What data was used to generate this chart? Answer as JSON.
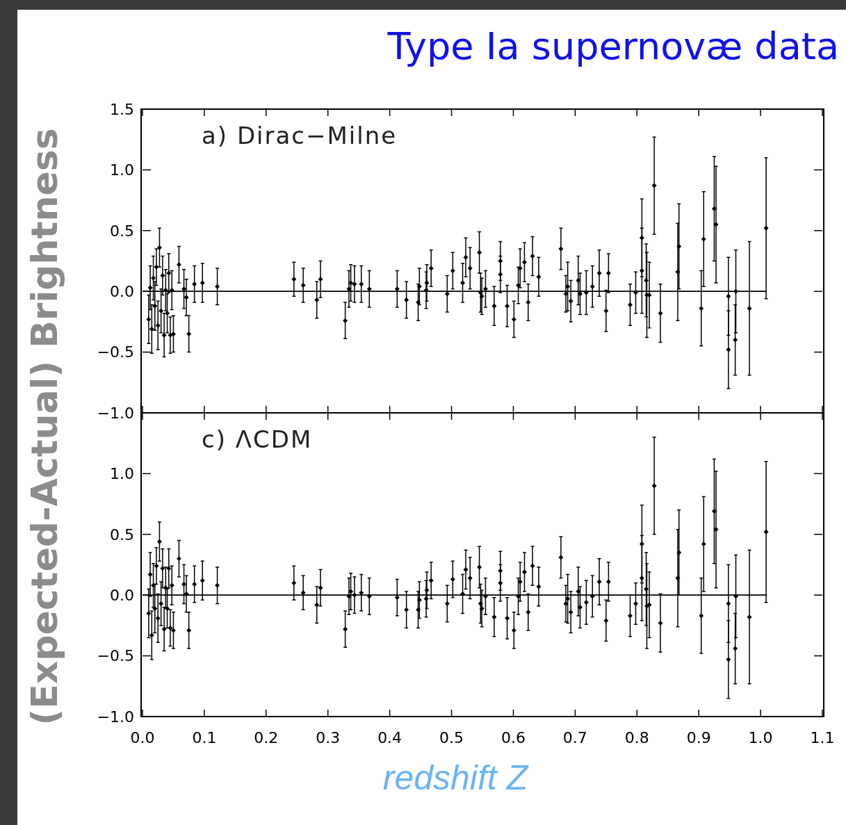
{
  "chart_data": [
    {
      "type": "scatter",
      "title": "Type Ia supernovæ data",
      "ylabel": "(Expected-Actual) Brightness",
      "annotations": [
        "a) Dirac−Milne"
      ],
      "marker": "diamond",
      "grid": false,
      "tick_labels": "y",
      "xlim": [
        0,
        1.1
      ],
      "xticks": [
        {
          "value": 0,
          "label": null
        },
        {
          "value": 0.1,
          "label": null
        },
        {
          "value": 0.2,
          "label": null
        },
        {
          "value": 0.3,
          "label": null
        },
        {
          "value": 0.4,
          "label": null
        },
        {
          "value": 0.5,
          "label": null
        },
        {
          "value": 0.6,
          "label": null
        },
        {
          "value": 0.7,
          "label": null
        },
        {
          "value": 0.8,
          "label": null
        },
        {
          "value": 0.9,
          "label": null
        },
        {
          "value": 1.0,
          "label": null
        },
        {
          "value": 1.1,
          "label": null
        }
      ],
      "ylim": [
        -1,
        1.5
      ],
      "yticks": [
        {
          "value": -1,
          "label": "−1.0"
        },
        {
          "value": -0.5,
          "label": "−0.5"
        },
        {
          "value": 0,
          "label": "0.0"
        },
        {
          "value": 0.5,
          "label": "0.5"
        },
        {
          "value": 1,
          "label": "1.0"
        },
        {
          "value": 1.5,
          "label": "1.5"
        }
      ],
      "series": [
        {
          "color": "#000000",
          "x": [
            0.01,
            0.0125,
            0.015,
            0.0175,
            0.02,
            0.0225,
            0.025,
            0.0275,
            0.03,
            0.0325,
            0.035,
            0.0375,
            0.04,
            0.0425,
            0.045,
            0.0475,
            0.05,
            0.059,
            0.067,
            0.071,
            0.075,
            0.084,
            0.097,
            0.121,
            0.245,
            0.26,
            0.282,
            0.288,
            0.328,
            0.334,
            0.337,
            0.343,
            0.354,
            0.367,
            0.412,
            0.427,
            0.446,
            0.448,
            0.459,
            0.46,
            0.467,
            0.493,
            0.502,
            0.518,
            0.523,
            0.53,
            0.545,
            0.547,
            0.549,
            0.555,
            0.569,
            0.579,
            0.579,
            0.59,
            0.601,
            0.608,
            0.611,
            0.618,
            0.624,
            0.631,
            0.641,
            0.677,
            0.685,
            0.688,
            0.693,
            0.705,
            0.708,
            0.718,
            0.728,
            0.739,
            0.75,
            0.754,
            0.789,
            0.798,
            0.808,
            0.808,
            0.815,
            0.816,
            0.82,
            0.828,
            0.838,
            0.866,
            0.868,
            0.904,
            0.908,
            0.925,
            0.928,
            0.948,
            0.948,
            0.959,
            0.96,
            0.982,
            1.009
          ],
          "values": [
            -0.23,
            0.03,
            -0.31,
            0.11,
            -0.12,
            0.2,
            -0.28,
            0.36,
            -0.16,
            0.13,
            -0.36,
            0.01,
            -0.18,
            0.15,
            -0.36,
            0.01,
            -0.35,
            0.22,
            0.02,
            -0.05,
            -0.35,
            0.06,
            0.07,
            0.04,
            0.1,
            0.05,
            -0.07,
            0.1,
            -0.24,
            0.02,
            0.07,
            0.06,
            0.06,
            0.02,
            0.02,
            -0.07,
            -0.09,
            0.04,
            0.01,
            0.07,
            0.19,
            -0.02,
            0.17,
            0.07,
            0.28,
            0.19,
            0.32,
            -0.01,
            -0.04,
            0.02,
            -0.12,
            0.14,
            0.25,
            -0.12,
            -0.23,
            0.05,
            0.19,
            0.24,
            -0.09,
            0.29,
            0.12,
            0.35,
            -0.02,
            0.04,
            -0.08,
            0.09,
            -0.02,
            -0.01,
            0.04,
            0.15,
            -0.16,
            0.15,
            -0.11,
            -0.01,
            0.44,
            0.17,
            0.09,
            -0.03,
            -0.03,
            0.87,
            -0.18,
            0.16,
            0.37,
            -0.14,
            0.43,
            0.68,
            0.55,
            -0.48,
            -0.04,
            -0.4,
            0.0,
            -0.14,
            0.52
          ],
          "errors": [
            0.2,
            0.18,
            0.2,
            0.18,
            0.2,
            0.15,
            0.2,
            0.16,
            0.18,
            0.16,
            0.18,
            0.17,
            0.16,
            0.16,
            0.15,
            0.16,
            0.15,
            0.15,
            0.16,
            0.15,
            0.15,
            0.15,
            0.16,
            0.15,
            0.14,
            0.14,
            0.15,
            0.15,
            0.15,
            0.15,
            0.15,
            0.15,
            0.15,
            0.15,
            0.15,
            0.15,
            0.15,
            0.15,
            0.15,
            0.15,
            0.15,
            0.15,
            0.15,
            0.16,
            0.16,
            0.17,
            0.17,
            0.16,
            0.15,
            0.15,
            0.16,
            0.15,
            0.16,
            0.17,
            0.15,
            0.15,
            0.16,
            0.16,
            0.15,
            0.16,
            0.16,
            0.17,
            0.15,
            0.2,
            0.17,
            0.2,
            0.17,
            0.18,
            0.17,
            0.19,
            0.17,
            0.16,
            0.17,
            0.17,
            0.32,
            0.35,
            0.3,
            0.35,
            0.27,
            0.4,
            0.24,
            0.4,
            0.35,
            0.31,
            0.39,
            0.43,
            0.48,
            0.32,
            0.32,
            0.29,
            0.34,
            0.55,
            0.58
          ]
        },
        {
          "type": "line",
          "marker": "none",
          "color": "#000000",
          "x": [
            0,
            1.01
          ],
          "values": [
            0,
            0
          ]
        }
      ]
    },
    {
      "type": "scatter",
      "xlabel": "redshift Z",
      "annotations": [
        "c) ΛCDM"
      ],
      "marker": "diamond",
      "grid": false,
      "xlim": [
        0,
        1.1
      ],
      "xticks": [
        {
          "value": 0,
          "label": "0.0"
        },
        {
          "value": 0.1,
          "label": "0.1"
        },
        {
          "value": 0.2,
          "label": "0.2"
        },
        {
          "value": 0.3,
          "label": "0.3"
        },
        {
          "value": 0.4,
          "label": "0.4"
        },
        {
          "value": 0.5,
          "label": "0.5"
        },
        {
          "value": 0.6,
          "label": "0.6"
        },
        {
          "value": 0.7,
          "label": "0.7"
        },
        {
          "value": 0.8,
          "label": "0.8"
        },
        {
          "value": 0.9,
          "label": "0.9"
        },
        {
          "value": 1.0,
          "label": "1.0"
        },
        {
          "value": 1.1,
          "label": "1.1"
        }
      ],
      "ylim": [
        -1,
        1.5
      ],
      "yticks": [
        {
          "value": -1,
          "label": "−1.0"
        },
        {
          "value": -0.5,
          "label": "−0.5"
        },
        {
          "value": 0,
          "label": "0.0"
        },
        {
          "value": 0.5,
          "label": "0.5"
        },
        {
          "value": 1,
          "label": "1.0"
        }
      ],
      "series": [
        {
          "color": "#000000",
          "x": [
            0.01,
            0.0125,
            0.015,
            0.0175,
            0.02,
            0.0225,
            0.025,
            0.0275,
            0.03,
            0.0325,
            0.035,
            0.0375,
            0.04,
            0.0425,
            0.045,
            0.0475,
            0.05,
            0.059,
            0.067,
            0.071,
            0.075,
            0.084,
            0.097,
            0.121,
            0.245,
            0.26,
            0.282,
            0.288,
            0.328,
            0.334,
            0.337,
            0.343,
            0.354,
            0.367,
            0.412,
            0.427,
            0.446,
            0.448,
            0.459,
            0.46,
            0.467,
            0.493,
            0.502,
            0.518,
            0.523,
            0.53,
            0.545,
            0.547,
            0.549,
            0.555,
            0.569,
            0.579,
            0.579,
            0.59,
            0.601,
            0.608,
            0.611,
            0.618,
            0.624,
            0.631,
            0.641,
            0.677,
            0.685,
            0.688,
            0.693,
            0.705,
            0.708,
            0.718,
            0.728,
            0.739,
            0.75,
            0.754,
            0.789,
            0.798,
            0.808,
            0.808,
            0.815,
            0.816,
            0.82,
            0.828,
            0.838,
            0.866,
            0.868,
            0.904,
            0.908,
            0.925,
            0.928,
            0.948,
            0.948,
            0.959,
            0.96,
            0.982,
            1.009
          ],
          "values": [
            -0.15,
            0.17,
            -0.33,
            0.08,
            -0.11,
            0.24,
            -0.19,
            0.44,
            -0.07,
            0.22,
            -0.28,
            0.06,
            -0.11,
            0.22,
            -0.27,
            0.08,
            -0.29,
            0.3,
            0.09,
            0.01,
            -0.29,
            0.09,
            0.12,
            0.08,
            0.1,
            0.02,
            -0.08,
            0.06,
            -0.28,
            -0.01,
            0.03,
            0.0,
            0.02,
            -0.01,
            -0.02,
            -0.12,
            -0.12,
            -0.04,
            -0.03,
            0.04,
            0.12,
            -0.07,
            0.13,
            0.01,
            0.21,
            0.14,
            0.23,
            -0.07,
            -0.11,
            -0.01,
            -0.18,
            0.1,
            0.2,
            -0.19,
            -0.29,
            -0.01,
            0.11,
            0.19,
            -0.14,
            0.24,
            0.07,
            0.31,
            -0.07,
            -0.03,
            -0.14,
            0.03,
            -0.1,
            -0.06,
            -0.01,
            0.11,
            -0.21,
            0.11,
            -0.17,
            -0.07,
            0.42,
            0.14,
            0.05,
            -0.09,
            -0.08,
            0.9,
            -0.23,
            0.14,
            0.35,
            -0.17,
            0.42,
            0.69,
            0.54,
            -0.53,
            -0.07,
            -0.44,
            -0.01,
            -0.18,
            0.52
          ],
          "errors": [
            0.2,
            0.18,
            0.2,
            0.18,
            0.2,
            0.15,
            0.2,
            0.16,
            0.18,
            0.16,
            0.18,
            0.17,
            0.16,
            0.16,
            0.15,
            0.16,
            0.15,
            0.15,
            0.16,
            0.15,
            0.15,
            0.15,
            0.16,
            0.15,
            0.14,
            0.14,
            0.15,
            0.15,
            0.15,
            0.15,
            0.15,
            0.15,
            0.15,
            0.15,
            0.15,
            0.15,
            0.15,
            0.15,
            0.15,
            0.15,
            0.15,
            0.15,
            0.15,
            0.16,
            0.16,
            0.17,
            0.17,
            0.16,
            0.15,
            0.15,
            0.16,
            0.15,
            0.16,
            0.17,
            0.15,
            0.15,
            0.16,
            0.16,
            0.15,
            0.16,
            0.16,
            0.17,
            0.15,
            0.2,
            0.17,
            0.2,
            0.17,
            0.18,
            0.17,
            0.19,
            0.17,
            0.16,
            0.17,
            0.17,
            0.32,
            0.35,
            0.3,
            0.35,
            0.27,
            0.4,
            0.24,
            0.4,
            0.35,
            0.31,
            0.39,
            0.43,
            0.48,
            0.32,
            0.32,
            0.29,
            0.34,
            0.55,
            0.58
          ]
        },
        {
          "type": "line",
          "marker": "none",
          "color": "#000000",
          "x": [
            0,
            1.01
          ],
          "values": [
            0,
            0
          ]
        }
      ]
    }
  ]
}
